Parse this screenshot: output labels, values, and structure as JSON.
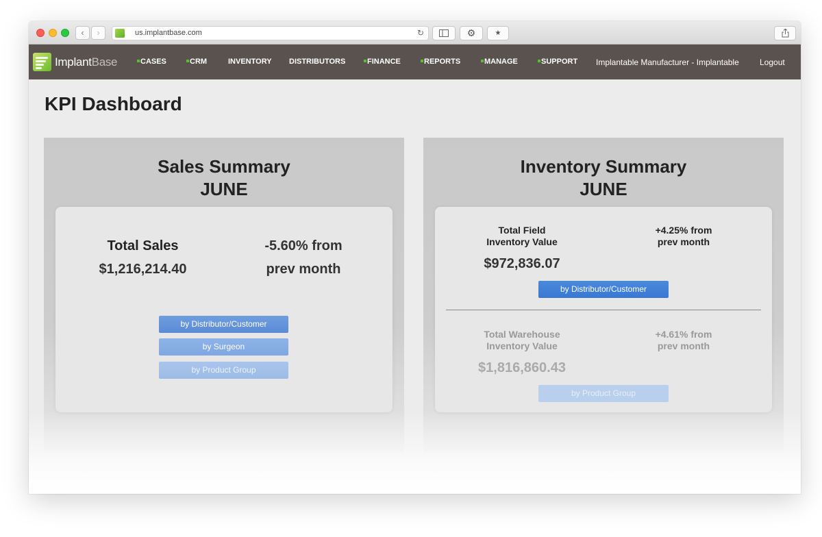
{
  "browser": {
    "url": "us.implantbase.com",
    "back_icon": "chevron-left-icon",
    "forward_icon": "chevron-right-icon"
  },
  "app": {
    "logo_part1": "Implant",
    "logo_part2": "Base",
    "nav": [
      "CASES",
      "CRM",
      "INVENTORY",
      "DISTRIBUTORS",
      "FINANCE",
      "REPORTS",
      "MANAGE",
      "SUPPORT"
    ],
    "user": "Implantable Manufacturer - Implantable",
    "logout": "Logout",
    "colors": {
      "nav_bg": "#59524f",
      "accent_green": "#55c12b",
      "button_blue": "#3878d2"
    }
  },
  "page": {
    "title": "KPI Dashboard"
  },
  "sales": {
    "title": "Sales Summary",
    "month": "JUNE",
    "total_label": "Total Sales",
    "total_value": "$1,216,214.40",
    "change_line1": "-5.60% from",
    "change_line2": "prev month",
    "buttons": [
      "by Distributor/Customer",
      "by Surgeon",
      "by Product Group"
    ]
  },
  "inventory": {
    "title": "Inventory Summary",
    "month": "JUNE",
    "field_label1": "Total Field",
    "field_label2": "Inventory Value",
    "field_value": "$972,836.07",
    "field_change1": "+4.25% from",
    "field_change2": "prev month",
    "field_button": "by Distributor/Customer",
    "warehouse_label1": "Total Warehouse",
    "warehouse_label2": "Inventory Value",
    "warehouse_value": "$1,816,860.43",
    "warehouse_change1": "+4.61% from",
    "warehouse_change2": "prev month",
    "warehouse_button": "by Product Group"
  }
}
